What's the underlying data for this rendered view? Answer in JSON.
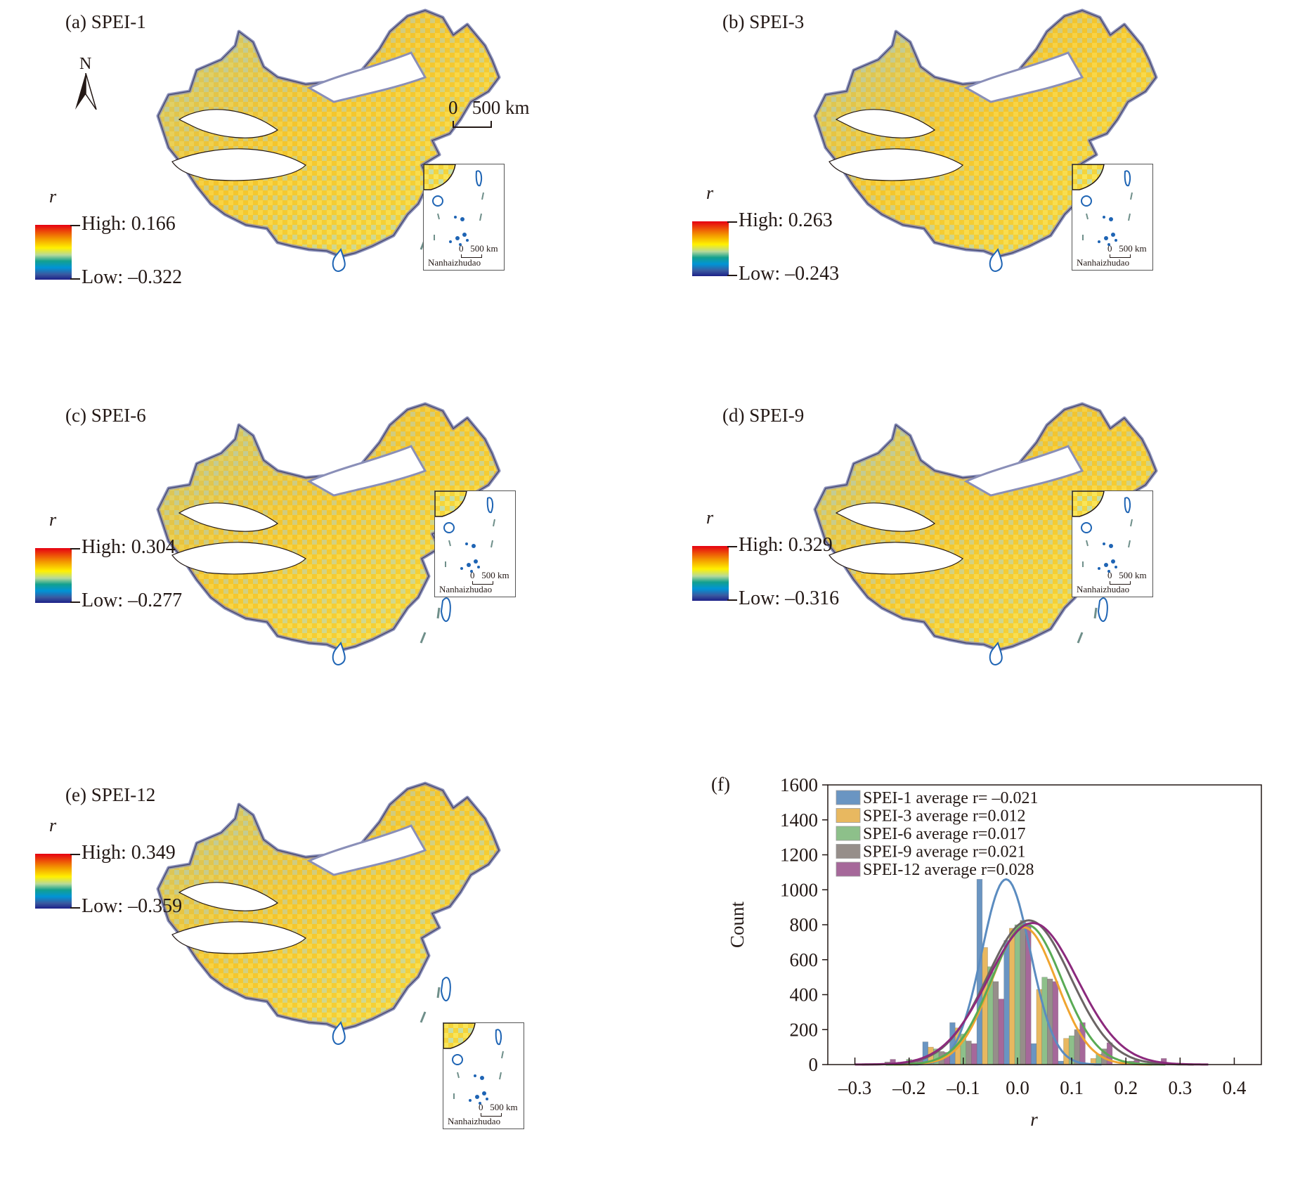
{
  "north_label": "N",
  "scale_bar": "0   500 km",
  "inset": {
    "name": "Nanhaizhudao",
    "scale": "0   500 km"
  },
  "legend_symbol": "r",
  "palette": [
    "#e60012",
    "#f39800",
    "#fff100",
    "#b5d99b",
    "#13a08e",
    "#0094d6",
    "#3a5aa0",
    "#1d2088"
  ],
  "maps": [
    {
      "title": "(a) SPEI-1",
      "high": "High: 0.166",
      "low": "Low: –0.322"
    },
    {
      "title": "(b) SPEI-3",
      "high": "High: 0.263",
      "low": "Low: –0.243"
    },
    {
      "title": "(c) SPEI-6",
      "high": "High: 0.304",
      "low": "Low: –0.277"
    },
    {
      "title": "(d) SPEI-9",
      "high": "High: 0.329",
      "low": "Low: –0.316"
    },
    {
      "title": "(e) SPEI-12",
      "high": "High: 0.349",
      "low": "Low: –0.359"
    }
  ],
  "chart_data": {
    "type": "bar",
    "title": "(f)",
    "xlabel": "r",
    "ylabel": "Count",
    "xlim": [
      -0.35,
      0.45
    ],
    "ylim": [
      0,
      1600
    ],
    "xticks": [
      "–0.3",
      "–0.2",
      "–0.1",
      "0.0",
      "0.1",
      "0.2",
      "0.3",
      "0.4"
    ],
    "xtick_values": [
      -0.3,
      -0.2,
      -0.1,
      0.0,
      0.1,
      0.2,
      0.3,
      0.4
    ],
    "yticks": [
      "0",
      "200",
      "400",
      "600",
      "800",
      "1000",
      "1200",
      "1400",
      "1600"
    ],
    "ytick_values": [
      0,
      200,
      400,
      600,
      800,
      1000,
      1200,
      1400,
      1600
    ],
    "legend_position": "top-left",
    "bin_centers": [
      -0.3,
      -0.25,
      -0.2,
      -0.15,
      -0.1,
      -0.05,
      0.0,
      0.05,
      0.1,
      0.15,
      0.2,
      0.25
    ],
    "series": [
      {
        "name": "SPEI-1 average r= –0.021",
        "color": "#6a95c2",
        "curve_color": "#5b8cc0",
        "mean": -0.021,
        "sd": 0.045,
        "values": [
          0,
          0,
          0,
          130,
          240,
          1060,
          710,
          120,
          20,
          0,
          0,
          0
        ]
      },
      {
        "name": "SPEI-3 average r=0.012",
        "color": "#e8b860",
        "curve_color": "#f0a530",
        "mean": 0.012,
        "sd": 0.06,
        "values": [
          0,
          0,
          15,
          100,
          210,
          670,
          780,
          430,
          150,
          35,
          0,
          0
        ]
      },
      {
        "name": "SPEI-6 average r=0.017",
        "color": "#8dc08a",
        "curve_color": "#5aab55",
        "mean": 0.017,
        "sd": 0.065,
        "values": [
          0,
          5,
          30,
          90,
          175,
          560,
          800,
          500,
          165,
          60,
          15,
          0
        ]
      },
      {
        "name": "SPEI-9 average r=0.021",
        "color": "#968e8a",
        "curve_color": "#6b6564",
        "mean": 0.021,
        "sd": 0.077,
        "values": [
          0,
          15,
          20,
          75,
          135,
          475,
          825,
          490,
          200,
          90,
          20,
          0
        ]
      },
      {
        "name": "SPEI-12 average r=0.028",
        "color": "#a6689a",
        "curve_color": "#8c2a7d",
        "mean": 0.028,
        "sd": 0.082,
        "values": [
          5,
          30,
          25,
          70,
          120,
          375,
          810,
          475,
          240,
          125,
          25,
          35
        ]
      }
    ]
  }
}
